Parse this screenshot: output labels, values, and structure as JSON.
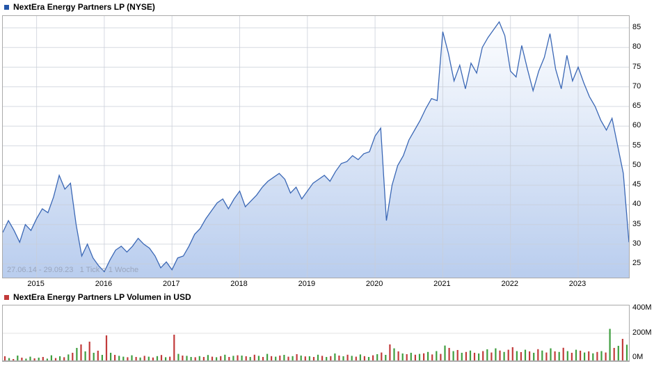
{
  "chart_data": [
    {
      "type": "area",
      "title": "NextEra Energy Partners LP (NYSE)",
      "legend_marker_color": "#2456a8",
      "footnote": "27.06.14 - 29.09.23   1 Tick = 1 Woche",
      "x_start": "2014-07",
      "x_end": "2023-09-29",
      "x_unit": "month",
      "x_tick_labels": [
        "2015",
        "2016",
        "2017",
        "2018",
        "2019",
        "2020",
        "2021",
        "2022",
        "2023"
      ],
      "x_tick_index": [
        6,
        18,
        30,
        42,
        54,
        66,
        78,
        90,
        102
      ],
      "y_ticks": [
        85,
        80,
        75,
        70,
        65,
        60,
        55,
        50,
        45,
        40,
        35,
        30,
        25
      ],
      "ylim": [
        21.5,
        88
      ],
      "line_color": "#3a67b5",
      "area_gradient_top": "#fdfeff",
      "area_gradient_bottom": "#b9cdee",
      "grid_color": "#c9ced8",
      "values": [
        33,
        36,
        33.5,
        30.5,
        35,
        33.5,
        36.5,
        39,
        38,
        42,
        47.5,
        44,
        45.5,
        35,
        27,
        30,
        26.5,
        24.5,
        23,
        26,
        28.5,
        29.5,
        28,
        29.5,
        31.5,
        30,
        29,
        27,
        24,
        25.5,
        23.5,
        26.5,
        27,
        29.5,
        32.5,
        34,
        36.5,
        38.5,
        40.5,
        41.5,
        39,
        41.5,
        43.5,
        39.5,
        41,
        42.5,
        44.5,
        46,
        47,
        48,
        46.5,
        43,
        44.5,
        41.5,
        43.5,
        45.5,
        46.5,
        47.5,
        46,
        48.5,
        50.5,
        51,
        52.5,
        51.5,
        53,
        53.5,
        57.5,
        59.5,
        36,
        45,
        50,
        52.5,
        56.5,
        59,
        61.5,
        64.5,
        67,
        66.5,
        84,
        78.5,
        71.5,
        75.5,
        69.5,
        76,
        73.5,
        80,
        82.5,
        84.5,
        86.5,
        83,
        74,
        72.5,
        80.5,
        74.5,
        69,
        74,
        77.5,
        83.5,
        74.5,
        69.5,
        78,
        71.5,
        75,
        71,
        67.5,
        65,
        61.5,
        59,
        62,
        55,
        48,
        30.5
      ]
    },
    {
      "type": "bar",
      "title": "NextEra Energy Partners LP Volumen in USD",
      "legend_marker_color": "#c23b3b",
      "unit": "M USD",
      "sign_convention": "negative = down week (red bar), positive = up week (green bar)",
      "up_color": "#3f9e3f",
      "down_color": "#c23b3b",
      "grid_color": "#e3e3e3",
      "y_ticks": [
        {
          "value": 400,
          "label": "400M"
        },
        {
          "value": 200,
          "label": "200M"
        },
        {
          "value": 0,
          "label": "0M"
        }
      ],
      "ylim": [
        0,
        400
      ],
      "values": [
        -35,
        22,
        -15,
        40,
        -25,
        18,
        32,
        -20,
        25,
        -30,
        18,
        42,
        -22,
        35,
        -28,
        48,
        -60,
        95,
        -120,
        70,
        -140,
        60,
        -75,
        45,
        -185,
        60,
        -45,
        38,
        32,
        -28,
        42,
        -30,
        26,
        -38,
        32,
        -26,
        36,
        -44,
        28,
        -32,
        -190,
        52,
        -40,
        38,
        30,
        -28,
        36,
        -30,
        44,
        -32,
        28,
        -36,
        46,
        -30,
        38,
        -42,
        40,
        -35,
        30,
        -46,
        38,
        -30,
        52,
        -36,
        32,
        -40,
        45,
        -32,
        36,
        -50,
        40,
        -34,
        35,
        -30,
        46,
        -38,
        30,
        -36,
        55,
        -40,
        35,
        -46,
        38,
        -32,
        48,
        -36,
        30,
        -42,
        50,
        -62,
        45,
        -120,
        92,
        -70,
        55,
        -50,
        60,
        -46,
        52,
        -56,
        66,
        -48,
        72,
        -52,
        112,
        -95,
        72,
        -80,
        60,
        -66,
        76,
        -60,
        55,
        -72,
        85,
        -62,
        92,
        -76,
        66,
        -82,
        -100,
        72,
        -65,
        82,
        -70,
        60,
        -86,
        76,
        -62,
        92,
        -70,
        66,
        -96,
        72,
        -60,
        82,
        -75,
        62,
        -70,
        56,
        -66,
        72,
        -62,
        232,
        -95,
        110,
        -160,
        118
      ]
    }
  ]
}
